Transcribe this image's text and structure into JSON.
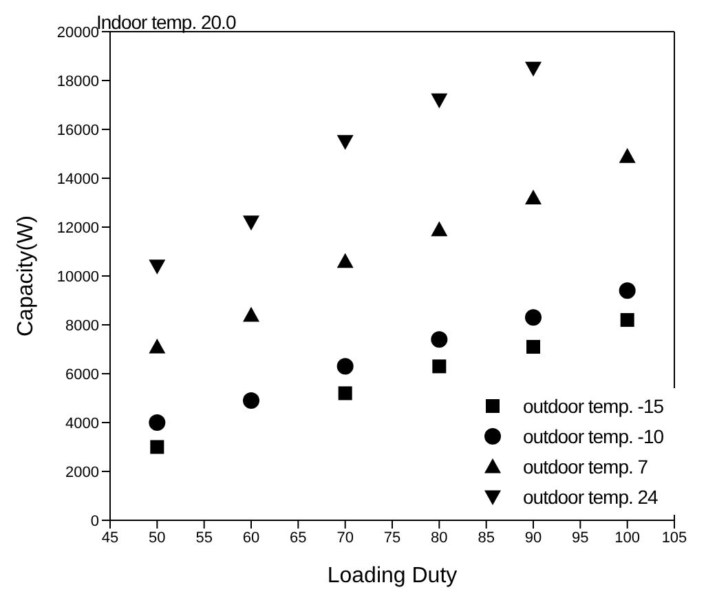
{
  "chart_data": {
    "type": "scatter",
    "title": "Indoor temp. 20.0",
    "xlabel": "Loading Duty",
    "ylabel": "Capacity(W)",
    "x": [
      50,
      60,
      70,
      80,
      90,
      100
    ],
    "series": [
      {
        "name": "outdoor temp. -15",
        "color": "#000000",
        "marker": "square",
        "values": [
          3000,
          null,
          5200,
          6300,
          7100,
          8200
        ]
      },
      {
        "name": "outdoor temp. -10",
        "color": "#000000",
        "marker": "circle",
        "values": [
          4000,
          4900,
          6300,
          7400,
          8300,
          9400
        ]
      },
      {
        "name": "outdoor temp. 7",
        "color": "#000000",
        "marker": "triangle",
        "values": [
          7100,
          8400,
          10600,
          11900,
          13200,
          14900
        ]
      },
      {
        "name": "outdoor temp. 24",
        "color": "#000000",
        "marker": "triangle-down",
        "values": [
          10400,
          12200,
          15500,
          17200,
          18500,
          null
        ]
      }
    ],
    "xlim": [
      45,
      105
    ],
    "xticks": [
      45,
      50,
      55,
      60,
      65,
      70,
      75,
      80,
      85,
      90,
      95,
      100,
      105
    ],
    "ylim": [
      0,
      20000
    ],
    "yticks": [
      0,
      2000,
      4000,
      6000,
      8000,
      10000,
      12000,
      14000,
      16000,
      18000,
      20000
    ],
    "legend": "bottom right"
  }
}
